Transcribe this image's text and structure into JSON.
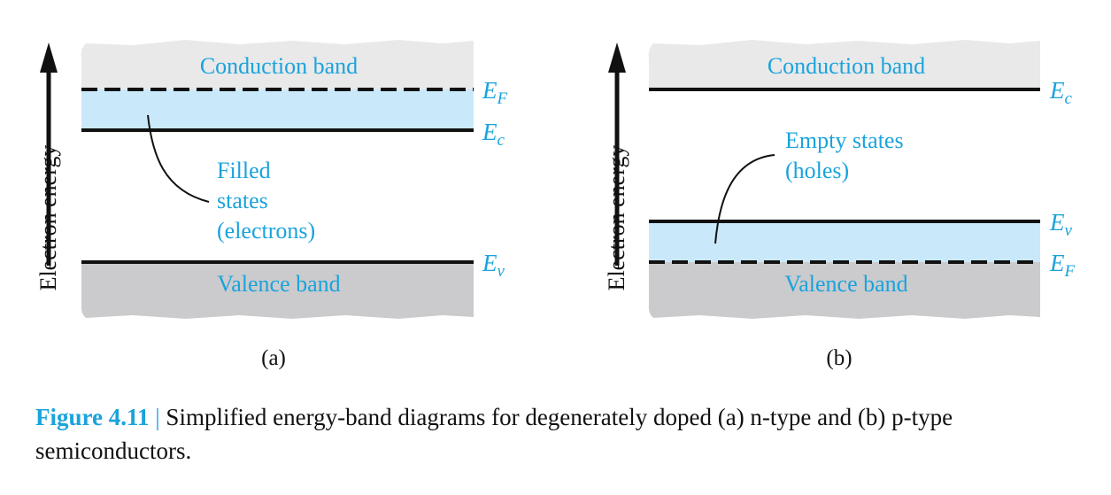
{
  "axis_label": "Electron energy",
  "panel_a": {
    "conduction_band": "Conduction band",
    "valence_band": "Valence band",
    "fermi_level": {
      "symbol": "E",
      "subscript": "F"
    },
    "conduction_edge": {
      "symbol": "E",
      "subscript": "c"
    },
    "valence_edge": {
      "symbol": "E",
      "subscript": "v"
    },
    "annotation": [
      "Filled",
      "states",
      "(electrons)"
    ],
    "label": "(a)"
  },
  "panel_b": {
    "conduction_band": "Conduction band",
    "valence_band": "Valence band",
    "conduction_edge": {
      "symbol": "E",
      "subscript": "c"
    },
    "valence_edge": {
      "symbol": "E",
      "subscript": "v"
    },
    "fermi_level": {
      "symbol": "E",
      "subscript": "F"
    },
    "annotation": [
      "Empty states",
      "(holes)"
    ],
    "label": "(b)"
  },
  "caption": {
    "figure_number": "Figure 4.11",
    "separator": "|",
    "text": "Simplified energy-band diagrams for degenerately doped (a) n-type and (b) p-type semiconductors."
  },
  "colors": {
    "conduction_band_fill": "#e9e9e9",
    "valence_band_fill": "#cbcbcd",
    "filled_region_fill": "#c9e9fa",
    "accent_text": "#1aa3dc",
    "line": "#111111"
  }
}
